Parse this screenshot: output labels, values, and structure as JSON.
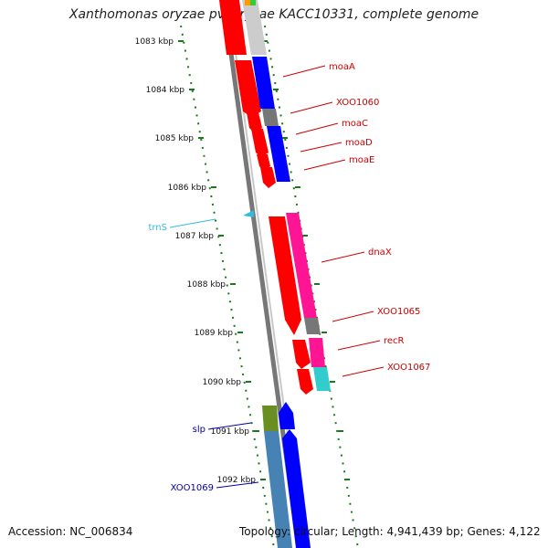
{
  "title": "Xanthomonas oryzae pv. oryzae KACC10331, complete genome",
  "footer": {
    "accession": "Accession: NC_006834",
    "topology": "Topology: circular; Length: 4,941,439 bp; Genes: 4,122"
  },
  "ticks": [
    "1083 kbp",
    "1084 kbp",
    "1085 kbp",
    "1086 kbp",
    "1087 kbp",
    "1088 kbp",
    "1089 kbp",
    "1090 kbp",
    "1091 kbp",
    "1092 kbp"
  ],
  "gene_labels": [
    {
      "name": "moaA",
      "color": "#cc0000"
    },
    {
      "name": "XOO1060",
      "color": "#cc0000"
    },
    {
      "name": "moaC",
      "color": "#cc0000"
    },
    {
      "name": "moaD",
      "color": "#cc0000"
    },
    {
      "name": "moaE",
      "color": "#cc0000"
    },
    {
      "name": "trnS",
      "color": "#33bbdd"
    },
    {
      "name": "dnaX",
      "color": "#cc0000"
    },
    {
      "name": "XOO1065",
      "color": "#cc0000"
    },
    {
      "name": "recR",
      "color": "#cc0000"
    },
    {
      "name": "XOO1067",
      "color": "#cc0000"
    },
    {
      "name": "slp",
      "color": "#0000aa"
    },
    {
      "name": "XOO1069",
      "color": "#0000aa"
    }
  ],
  "colors": {
    "backbone": "#888888",
    "ticks": "#1a7a1a",
    "cds_red": "#ff0000",
    "cds_blue": "#0000ff",
    "magenta": "#ff1493",
    "gray_feature": "#777777",
    "olive": "#6b8e23",
    "steelblue": "#4682b4",
    "cyan": "#33bbdd"
  }
}
